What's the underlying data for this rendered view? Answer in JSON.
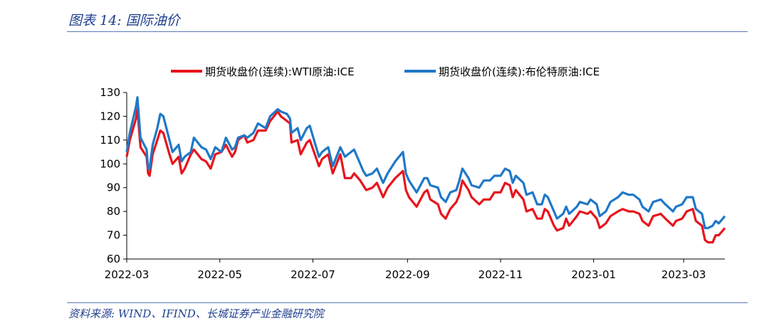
{
  "header": {
    "title": "图表 14:  国际油价"
  },
  "footer": {
    "source": "资料来源:  WIND、IFIND、长城证券产业金融研究院"
  },
  "chart_data": {
    "type": "line",
    "legend_position": "top",
    "grid": false,
    "ylim": [
      60,
      130
    ],
    "yticks": [
      60,
      70,
      80,
      90,
      100,
      110,
      120,
      130
    ],
    "xlim": [
      "2022-03-01",
      "2023-03-28"
    ],
    "xticks": [
      "2022-03",
      "2022-05",
      "2022-07",
      "2022-09",
      "2022-11",
      "2023-01",
      "2023-03"
    ],
    "series": [
      {
        "name": "期货收盘价(连续):WTI原油:ICE",
        "color": "#e8141c",
        "points": [
          [
            "2022-03-01",
            103
          ],
          [
            "2022-03-03",
            110
          ],
          [
            "2022-03-07",
            119
          ],
          [
            "2022-03-08",
            123
          ],
          [
            "2022-03-10",
            107
          ],
          [
            "2022-03-14",
            103
          ],
          [
            "2022-03-15",
            96
          ],
          [
            "2022-03-16",
            95
          ],
          [
            "2022-03-18",
            104
          ],
          [
            "2022-03-21",
            110
          ],
          [
            "2022-03-23",
            114
          ],
          [
            "2022-03-25",
            113
          ],
          [
            "2022-03-29",
            104
          ],
          [
            "2022-03-31",
            100
          ],
          [
            "2022-04-04",
            103
          ],
          [
            "2022-04-06",
            96
          ],
          [
            "2022-04-08",
            98
          ],
          [
            "2022-04-12",
            104
          ],
          [
            "2022-04-14",
            106
          ],
          [
            "2022-04-19",
            102
          ],
          [
            "2022-04-22",
            101
          ],
          [
            "2022-04-25",
            98
          ],
          [
            "2022-04-28",
            104
          ],
          [
            "2022-05-02",
            105
          ],
          [
            "2022-05-05",
            108
          ],
          [
            "2022-05-09",
            103
          ],
          [
            "2022-05-11",
            105
          ],
          [
            "2022-05-13",
            110
          ],
          [
            "2022-05-17",
            112
          ],
          [
            "2022-05-19",
            109
          ],
          [
            "2022-05-23",
            110
          ],
          [
            "2022-05-26",
            114
          ],
          [
            "2022-05-31",
            114
          ],
          [
            "2022-06-03",
            118
          ],
          [
            "2022-06-08",
            122
          ],
          [
            "2022-06-10",
            120
          ],
          [
            "2022-06-14",
            118
          ],
          [
            "2022-06-16",
            117
          ],
          [
            "2022-06-17",
            109
          ],
          [
            "2022-06-21",
            110
          ],
          [
            "2022-06-23",
            104
          ],
          [
            "2022-06-27",
            109
          ],
          [
            "2022-06-29",
            110
          ],
          [
            "2022-07-05",
            99
          ],
          [
            "2022-07-07",
            102
          ],
          [
            "2022-07-11",
            104
          ],
          [
            "2022-07-14",
            96
          ],
          [
            "2022-07-19",
            104
          ],
          [
            "2022-07-22",
            94
          ],
          [
            "2022-07-26",
            94
          ],
          [
            "2022-07-28",
            96
          ],
          [
            "2022-08-01",
            93
          ],
          [
            "2022-08-03",
            91
          ],
          [
            "2022-08-05",
            89
          ],
          [
            "2022-08-09",
            90
          ],
          [
            "2022-08-12",
            92
          ],
          [
            "2022-08-16",
            86
          ],
          [
            "2022-08-19",
            90
          ],
          [
            "2022-08-24",
            94
          ],
          [
            "2022-08-29",
            97
          ],
          [
            "2022-08-31",
            89
          ],
          [
            "2022-09-02",
            86
          ],
          [
            "2022-09-07",
            82
          ],
          [
            "2022-09-12",
            88
          ],
          [
            "2022-09-14",
            89
          ],
          [
            "2022-09-16",
            85
          ],
          [
            "2022-09-21",
            83
          ],
          [
            "2022-09-23",
            79
          ],
          [
            "2022-09-26",
            77
          ],
          [
            "2022-09-29",
            81
          ],
          [
            "2022-10-03",
            84
          ],
          [
            "2022-10-05",
            87
          ],
          [
            "2022-10-07",
            93
          ],
          [
            "2022-10-11",
            89
          ],
          [
            "2022-10-13",
            86
          ],
          [
            "2022-10-18",
            83
          ],
          [
            "2022-10-21",
            85
          ],
          [
            "2022-10-25",
            85
          ],
          [
            "2022-10-28",
            88
          ],
          [
            "2022-11-01",
            88
          ],
          [
            "2022-11-04",
            92
          ],
          [
            "2022-11-07",
            91
          ],
          [
            "2022-11-09",
            86
          ],
          [
            "2022-11-11",
            89
          ],
          [
            "2022-11-16",
            85
          ],
          [
            "2022-11-18",
            80
          ],
          [
            "2022-11-22",
            81
          ],
          [
            "2022-11-25",
            77
          ],
          [
            "2022-11-28",
            77
          ],
          [
            "2022-11-30",
            81
          ],
          [
            "2022-12-02",
            80
          ],
          [
            "2022-12-06",
            74
          ],
          [
            "2022-12-08",
            72
          ],
          [
            "2022-12-12",
            73
          ],
          [
            "2022-12-14",
            77
          ],
          [
            "2022-12-16",
            74
          ],
          [
            "2022-12-21",
            78
          ],
          [
            "2022-12-23",
            80
          ],
          [
            "2022-12-28",
            79
          ],
          [
            "2022-12-30",
            80
          ],
          [
            "2023-01-03",
            77
          ],
          [
            "2023-01-05",
            73
          ],
          [
            "2023-01-09",
            75
          ],
          [
            "2023-01-12",
            78
          ],
          [
            "2023-01-17",
            80
          ],
          [
            "2023-01-20",
            81
          ],
          [
            "2023-01-24",
            80
          ],
          [
            "2023-01-27",
            80
          ],
          [
            "2023-01-31",
            79
          ],
          [
            "2023-02-02",
            76
          ],
          [
            "2023-02-06",
            74
          ],
          [
            "2023-02-09",
            78
          ],
          [
            "2023-02-14",
            79
          ],
          [
            "2023-02-17",
            77
          ],
          [
            "2023-02-22",
            74
          ],
          [
            "2023-02-24",
            76
          ],
          [
            "2023-02-28",
            77
          ],
          [
            "2023-03-03",
            80
          ],
          [
            "2023-03-07",
            81
          ],
          [
            "2023-03-09",
            76
          ],
          [
            "2023-03-13",
            74
          ],
          [
            "2023-03-15",
            68
          ],
          [
            "2023-03-17",
            67
          ],
          [
            "2023-03-20",
            67
          ],
          [
            "2023-03-22",
            70
          ],
          [
            "2023-03-24",
            70
          ],
          [
            "2023-03-28",
            73
          ]
        ]
      },
      {
        "name": "期货收盘价(连续):布伦特原油:ICE",
        "color": "#1f78c8",
        "points": [
          [
            "2022-03-01",
            105
          ],
          [
            "2022-03-03",
            113
          ],
          [
            "2022-03-07",
            124
          ],
          [
            "2022-03-08",
            128
          ],
          [
            "2022-03-10",
            111
          ],
          [
            "2022-03-14",
            106
          ],
          [
            "2022-03-15",
            98
          ],
          [
            "2022-03-16",
            98
          ],
          [
            "2022-03-18",
            108
          ],
          [
            "2022-03-21",
            115
          ],
          [
            "2022-03-23",
            121
          ],
          [
            "2022-03-25",
            120
          ],
          [
            "2022-03-29",
            110
          ],
          [
            "2022-03-31",
            105
          ],
          [
            "2022-04-04",
            108
          ],
          [
            "2022-04-06",
            101
          ],
          [
            "2022-04-08",
            103
          ],
          [
            "2022-04-12",
            105
          ],
          [
            "2022-04-14",
            111
          ],
          [
            "2022-04-19",
            107
          ],
          [
            "2022-04-22",
            106
          ],
          [
            "2022-04-25",
            102
          ],
          [
            "2022-04-28",
            107
          ],
          [
            "2022-05-02",
            105
          ],
          [
            "2022-05-05",
            111
          ],
          [
            "2022-05-09",
            106
          ],
          [
            "2022-05-11",
            107
          ],
          [
            "2022-05-13",
            111
          ],
          [
            "2022-05-17",
            112
          ],
          [
            "2022-05-19",
            111
          ],
          [
            "2022-05-23",
            113
          ],
          [
            "2022-05-26",
            117
          ],
          [
            "2022-05-31",
            115
          ],
          [
            "2022-06-03",
            120
          ],
          [
            "2022-06-08",
            123
          ],
          [
            "2022-06-10",
            122
          ],
          [
            "2022-06-14",
            121
          ],
          [
            "2022-06-16",
            119
          ],
          [
            "2022-06-17",
            113
          ],
          [
            "2022-06-21",
            115
          ],
          [
            "2022-06-23",
            110
          ],
          [
            "2022-06-27",
            115
          ],
          [
            "2022-06-29",
            116
          ],
          [
            "2022-07-05",
            103
          ],
          [
            "2022-07-07",
            105
          ],
          [
            "2022-07-11",
            107
          ],
          [
            "2022-07-14",
            99
          ],
          [
            "2022-07-19",
            107
          ],
          [
            "2022-07-22",
            103
          ],
          [
            "2022-07-26",
            105
          ],
          [
            "2022-07-28",
            106
          ],
          [
            "2022-08-01",
            100
          ],
          [
            "2022-08-03",
            97
          ],
          [
            "2022-08-05",
            95
          ],
          [
            "2022-08-09",
            96
          ],
          [
            "2022-08-12",
            98
          ],
          [
            "2022-08-16",
            92
          ],
          [
            "2022-08-19",
            96
          ],
          [
            "2022-08-24",
            101
          ],
          [
            "2022-08-29",
            105
          ],
          [
            "2022-08-31",
            96
          ],
          [
            "2022-09-02",
            93
          ],
          [
            "2022-09-07",
            88
          ],
          [
            "2022-09-12",
            94
          ],
          [
            "2022-09-14",
            94
          ],
          [
            "2022-09-16",
            91
          ],
          [
            "2022-09-21",
            90
          ],
          [
            "2022-09-23",
            86
          ],
          [
            "2022-09-26",
            84
          ],
          [
            "2022-09-29",
            88
          ],
          [
            "2022-10-03",
            89
          ],
          [
            "2022-10-05",
            93
          ],
          [
            "2022-10-07",
            98
          ],
          [
            "2022-10-11",
            94
          ],
          [
            "2022-10-13",
            91
          ],
          [
            "2022-10-18",
            90
          ],
          [
            "2022-10-21",
            93
          ],
          [
            "2022-10-25",
            93
          ],
          [
            "2022-10-28",
            95
          ],
          [
            "2022-11-01",
            95
          ],
          [
            "2022-11-04",
            98
          ],
          [
            "2022-11-07",
            97
          ],
          [
            "2022-11-09",
            92
          ],
          [
            "2022-11-11",
            95
          ],
          [
            "2022-11-16",
            92
          ],
          [
            "2022-11-18",
            87
          ],
          [
            "2022-11-22",
            88
          ],
          [
            "2022-11-25",
            83
          ],
          [
            "2022-11-28",
            83
          ],
          [
            "2022-11-30",
            87
          ],
          [
            "2022-12-02",
            86
          ],
          [
            "2022-12-06",
            80
          ],
          [
            "2022-12-08",
            77
          ],
          [
            "2022-12-12",
            79
          ],
          [
            "2022-12-14",
            82
          ],
          [
            "2022-12-16",
            79
          ],
          [
            "2022-12-21",
            82
          ],
          [
            "2022-12-23",
            84
          ],
          [
            "2022-12-28",
            83
          ],
          [
            "2022-12-30",
            85
          ],
          [
            "2023-01-03",
            83
          ],
          [
            "2023-01-05",
            78
          ],
          [
            "2023-01-09",
            80
          ],
          [
            "2023-01-12",
            84
          ],
          [
            "2023-01-17",
            86
          ],
          [
            "2023-01-20",
            88
          ],
          [
            "2023-01-24",
            87
          ],
          [
            "2023-01-27",
            87
          ],
          [
            "2023-01-31",
            85
          ],
          [
            "2023-02-02",
            82
          ],
          [
            "2023-02-06",
            80
          ],
          [
            "2023-02-09",
            84
          ],
          [
            "2023-02-14",
            85
          ],
          [
            "2023-02-17",
            83
          ],
          [
            "2023-02-22",
            80
          ],
          [
            "2023-02-24",
            82
          ],
          [
            "2023-02-28",
            83
          ],
          [
            "2023-03-03",
            86
          ],
          [
            "2023-03-07",
            86
          ],
          [
            "2023-03-09",
            81
          ],
          [
            "2023-03-13",
            79
          ],
          [
            "2023-03-15",
            73
          ],
          [
            "2023-03-17",
            73
          ],
          [
            "2023-03-20",
            74
          ],
          [
            "2023-03-22",
            76
          ],
          [
            "2023-03-24",
            75
          ],
          [
            "2023-03-28",
            78
          ]
        ]
      }
    ]
  }
}
